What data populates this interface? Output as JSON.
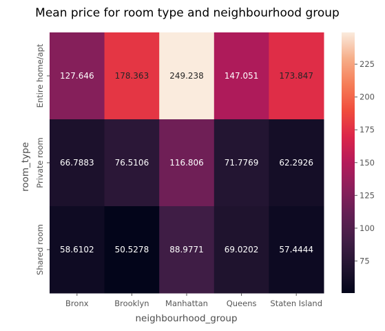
{
  "chart_data": {
    "type": "heatmap",
    "title": "Mean price for room type and neighbourhood group",
    "xlabel": "neighbourhood_group",
    "ylabel": "room_type",
    "x_categories": [
      "Bronx",
      "Brooklyn",
      "Manhattan",
      "Queens",
      "Staten Island"
    ],
    "y_categories": [
      "Entire home/apt",
      "Private room",
      "Shared room"
    ],
    "values": [
      [
        127.646,
        178.363,
        249.238,
        147.051,
        173.847
      ],
      [
        66.7883,
        76.5106,
        116.806,
        71.7769,
        62.2926
      ],
      [
        58.6102,
        50.5278,
        88.9771,
        69.0202,
        57.4444
      ]
    ],
    "value_labels": [
      [
        "127.646",
        "178.363",
        "249.238",
        "147.051",
        "173.847"
      ],
      [
        "66.7883",
        "76.5106",
        "116.806",
        "71.7769",
        "62.2926"
      ],
      [
        "58.6102",
        "50.5278",
        "88.9771",
        "69.0202",
        "57.4444"
      ]
    ],
    "colormap": "rocket",
    "color_range": [
      50.5278,
      249.238
    ],
    "colorbar": {
      "ticks": [
        75,
        100,
        125,
        150,
        175,
        200,
        225
      ],
      "tick_labels": [
        "75",
        "100",
        "125",
        "150",
        "175",
        "200",
        "225"
      ]
    },
    "grid": false,
    "legend": "colorbar-right"
  }
}
